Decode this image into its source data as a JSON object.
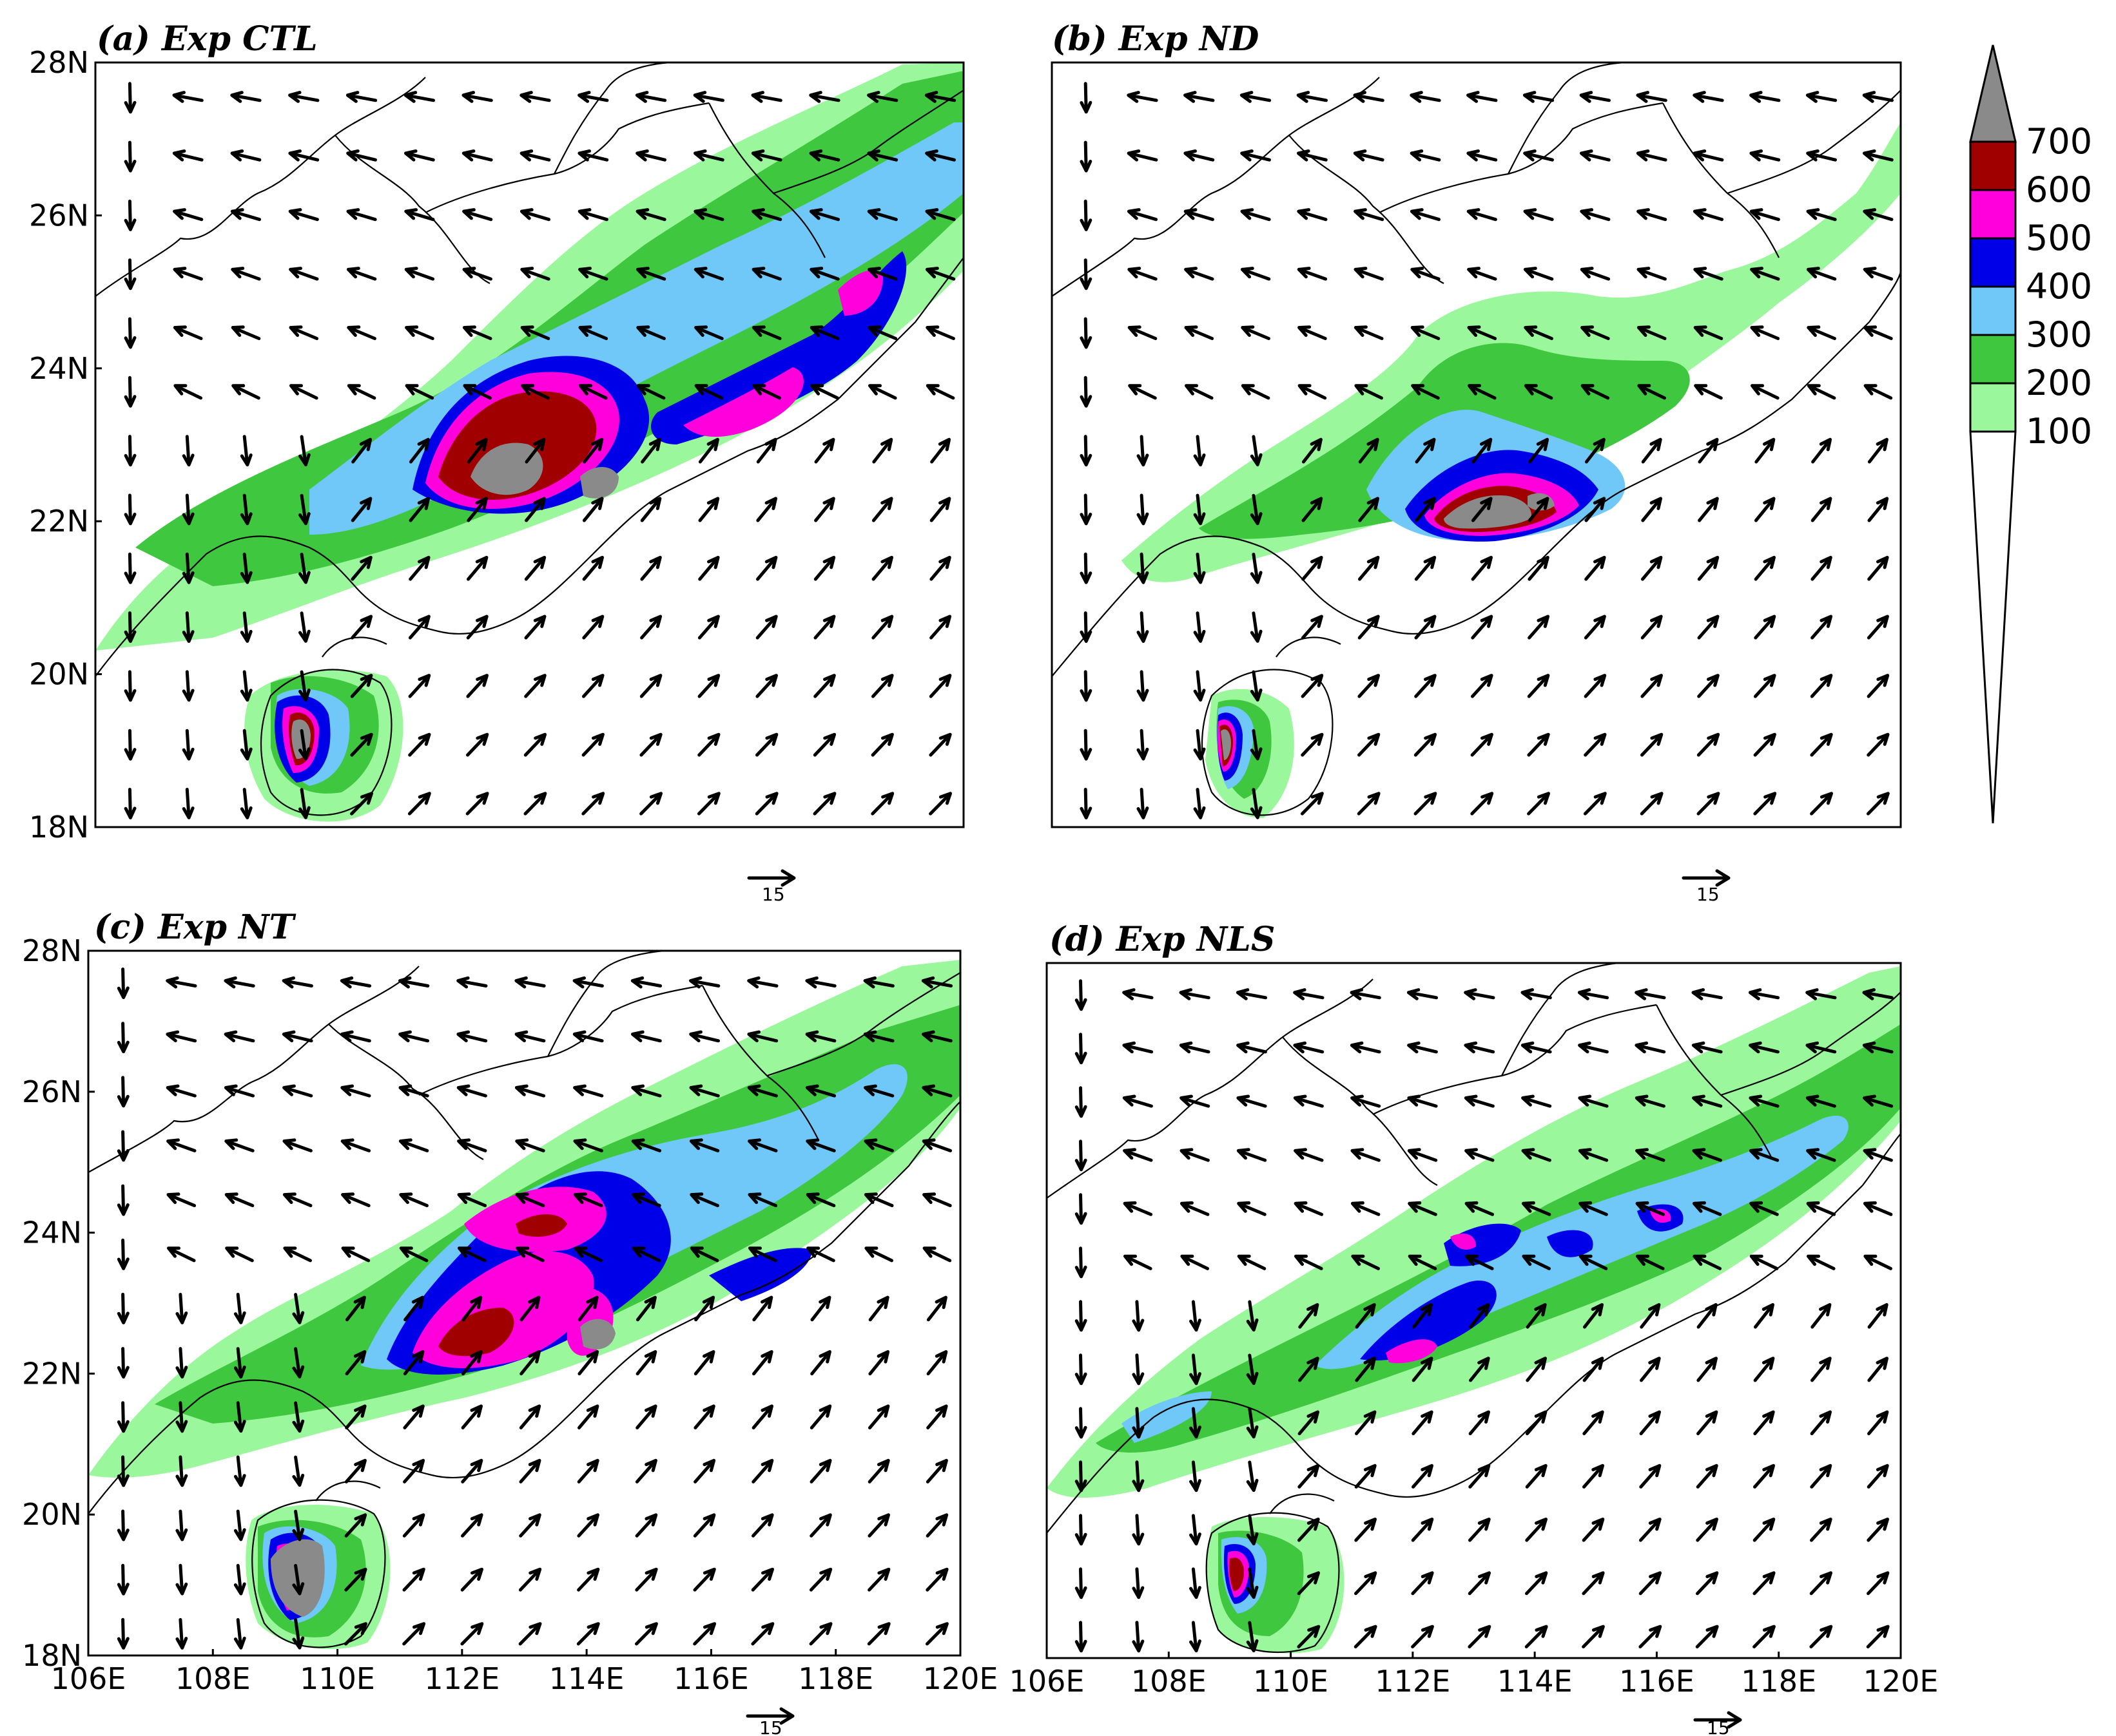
{
  "figure": {
    "colorbar": {
      "levels": [
        "100",
        "200",
        "300",
        "400",
        "500",
        "600",
        "700"
      ],
      "colors": [
        "#ffffff",
        "#9bf79b",
        "#3fc83f",
        "#6fc8f8",
        "#0000e8",
        "#ff00dc",
        "#a00000",
        "#8a8a8a"
      ]
    },
    "panels": [
      {
        "id": "a",
        "title": "(a) Exp CTL",
        "y_ticks": [
          "28N",
          "26N",
          "24N",
          "22N",
          "20N",
          "18N"
        ],
        "x_ticks": [],
        "ref_vector_label": "15"
      },
      {
        "id": "b",
        "title": "(b) Exp ND",
        "y_ticks": [],
        "x_ticks": [],
        "ref_vector_label": "15"
      },
      {
        "id": "c",
        "title": "(c) Exp NT",
        "y_ticks": [
          "28N",
          "26N",
          "24N",
          "22N",
          "20N",
          "18N"
        ],
        "x_ticks": [
          "106E",
          "108E",
          "110E",
          "112E",
          "114E",
          "116E",
          "118E",
          "120E"
        ],
        "ref_vector_label": "15"
      },
      {
        "id": "d",
        "title": "(d) Exp NLS",
        "y_ticks": [],
        "x_ticks": [
          "106E",
          "108E",
          "110E",
          "112E",
          "114E",
          "116E",
          "118E",
          "120E"
        ],
        "ref_vector_label": "15"
      }
    ]
  }
}
